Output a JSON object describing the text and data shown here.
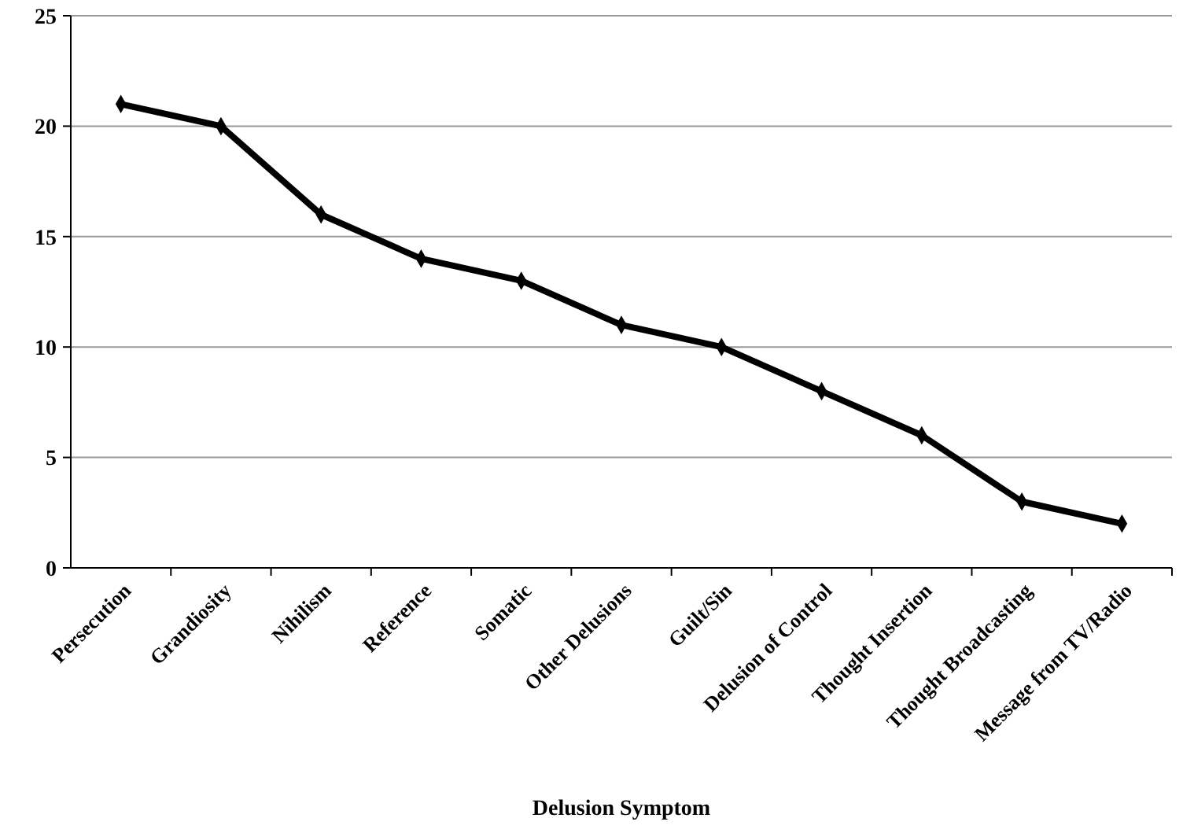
{
  "chart_data": {
    "type": "line",
    "xlabel": "Delusion Symptom",
    "categories": [
      "Persecution",
      "Grandiosity",
      "Nihilism",
      "Reference",
      "Somatic",
      "Other Delusions",
      "Guilt/Sin",
      "Delusion of Control",
      "Thought Insertion",
      "Thought Broadcasting",
      "Message from TV/Radio"
    ],
    "series": [
      {
        "color": "#000000",
        "values": [
          21,
          20,
          16,
          14,
          13,
          11,
          10,
          8,
          6,
          3,
          2
        ]
      }
    ],
    "ylim": [
      0,
      25
    ],
    "yticks": [
      0,
      5,
      10,
      15,
      20,
      25
    ],
    "grid": "y",
    "marker": "diamond",
    "line_style": "solid"
  }
}
